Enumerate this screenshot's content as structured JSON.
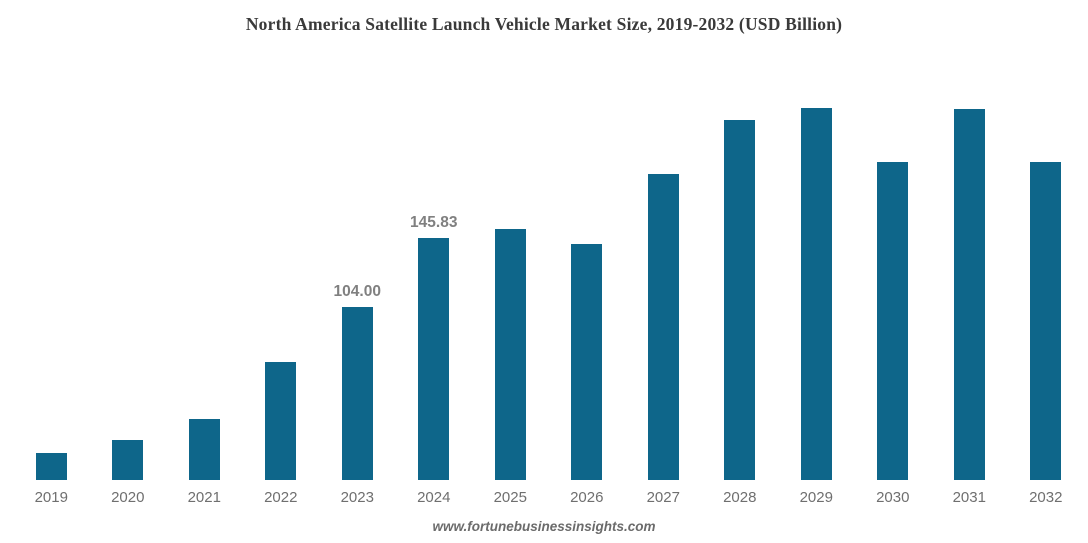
{
  "chart_data": {
    "type": "bar",
    "title": "North America Satellite Launch Vehicle Market Size, 2019-2032 (USD Billion)",
    "unit": "USD Billion",
    "xlabel": "",
    "ylabel": "",
    "categories": [
      "2019",
      "2020",
      "2021",
      "2022",
      "2023",
      "2024",
      "2025",
      "2026",
      "2027",
      "2028",
      "2029",
      "2030",
      "2031",
      "2032"
    ],
    "values": [
      16.3,
      24.1,
      36.7,
      71.0,
      104.0,
      145.83,
      151.1,
      142.1,
      184.2,
      216.7,
      224.0,
      191.4,
      223.4,
      191.4
    ],
    "value_labels": {
      "2023": "104.00",
      "2024": "145.83"
    },
    "ylim": [
      0,
      253
    ],
    "grid": false,
    "legend": "none",
    "axes_visible": false,
    "bar_color": "#0e668a",
    "value_label_color": "#808080",
    "axis_label_color": "#6f6f6f",
    "title_color": "#3a3a3a"
  },
  "footer": {
    "watermark": "www.fortunebusinessinsights.com"
  }
}
